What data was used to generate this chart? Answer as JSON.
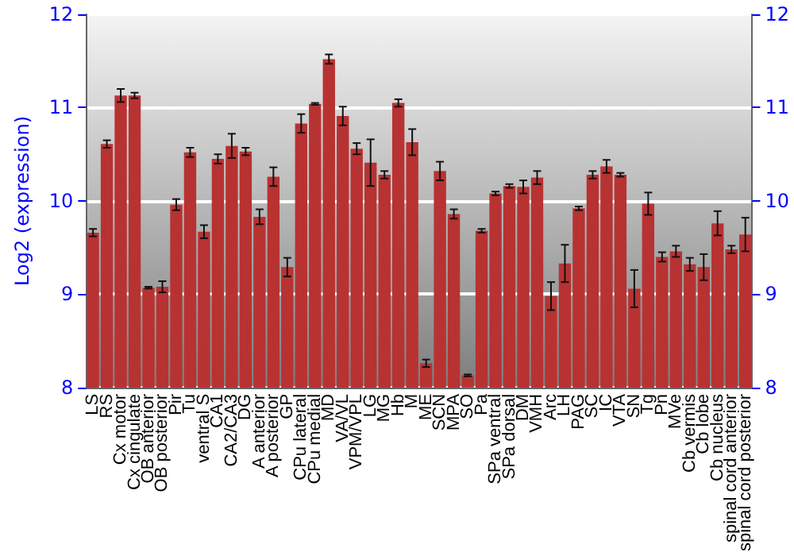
{
  "chart_data": {
    "type": "bar",
    "ylabel": "Log2 (expression)",
    "categories": [
      "LS",
      "RS",
      "Cx motor",
      "Cx cingulate",
      "OB anterior",
      "OB posterior",
      "Pir",
      "Tu",
      "ventral S",
      "CA1",
      "CA2/CA3",
      "DG",
      "A anterior",
      "A posterior",
      "GP",
      "CPu lateral",
      "CPu medial",
      "MD",
      "VA/VL",
      "VPM/VPL",
      "LG",
      "MG",
      "Hb",
      "M",
      "ME",
      "SCN",
      "MPA",
      "SO",
      "Pa",
      "SPa ventral",
      "SPa dorsal",
      "DM",
      "VMH",
      "Arc",
      "LH",
      "PAG",
      "SC",
      "IC",
      "VTA",
      "SN",
      "Tg",
      "Pn",
      "MVe",
      "Cb vermis",
      "Cb lobe",
      "Cb nucleus",
      "spinal cord anterior",
      "spinal cord posterior"
    ],
    "values": [
      9.66,
      10.61,
      11.13,
      11.13,
      9.07,
      9.08,
      9.96,
      10.52,
      9.67,
      10.45,
      10.59,
      10.53,
      9.83,
      10.26,
      9.29,
      10.83,
      11.04,
      11.52,
      10.91,
      10.56,
      10.41,
      10.28,
      11.05,
      10.63,
      8.26,
      10.32,
      9.86,
      8.13,
      9.68,
      10.08,
      10.16,
      10.15,
      10.25,
      8.98,
      9.33,
      9.92,
      10.28,
      10.37,
      10.28,
      9.06,
      9.97,
      9.4,
      9.46,
      9.32,
      9.29,
      9.76,
      9.48,
      9.64
    ],
    "errors": [
      0.04,
      0.04,
      0.07,
      0.03,
      0.01,
      0.06,
      0.06,
      0.05,
      0.07,
      0.05,
      0.13,
      0.04,
      0.08,
      0.1,
      0.1,
      0.1,
      0.01,
      0.05,
      0.1,
      0.06,
      0.25,
      0.04,
      0.04,
      0.14,
      0.04,
      0.1,
      0.05,
      0.01,
      0.02,
      0.02,
      0.02,
      0.07,
      0.07,
      0.15,
      0.2,
      0.02,
      0.04,
      0.07,
      0.02,
      0.2,
      0.12,
      0.05,
      0.06,
      0.07,
      0.14,
      0.13,
      0.04,
      0.18
    ],
    "color": "#b83232",
    "ylim": [
      8,
      12
    ],
    "yticks": [
      8,
      9,
      10,
      11,
      12
    ],
    "y2lim": [
      8,
      12
    ],
    "y2ticks": [
      8,
      9,
      10,
      11,
      12
    ],
    "grid": "y"
  }
}
